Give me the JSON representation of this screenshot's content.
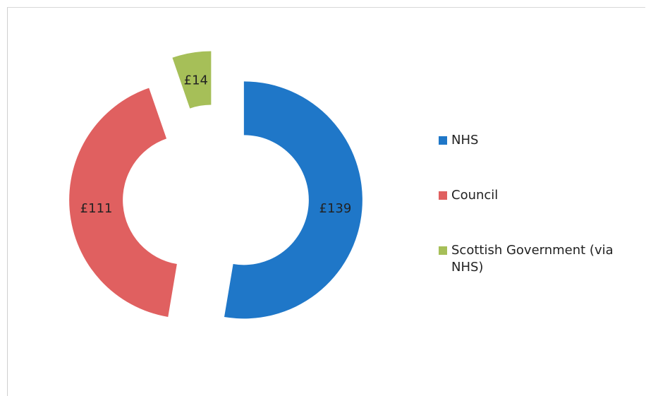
{
  "chart_data": {
    "type": "pie",
    "style": "exploded-doughnut",
    "title": "",
    "currency": "£",
    "series": [
      {
        "name": "",
        "labels": [
          "NHS",
          "Council",
          "Scottish Government (via NHS)"
        ],
        "values": [
          139,
          111,
          14
        ],
        "value_labels": [
          "£139",
          "£111",
          "£14"
        ],
        "colors": [
          "#1f77c8",
          "#e06060",
          "#a6bf58"
        ]
      }
    ],
    "legend_position": "right"
  }
}
